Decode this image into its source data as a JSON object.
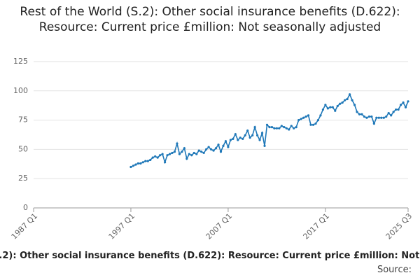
{
  "chart_data": {
    "type": "line",
    "title": "Rest of the World (S.2): Other social insurance benefits (D.622): Resource: Current price £million: Not seasonally adjusted",
    "source_label": "Source:",
    "x": [
      "1997 Q1",
      "1997 Q2",
      "1997 Q3",
      "1997 Q4",
      "1998 Q1",
      "1998 Q2",
      "1998 Q3",
      "1998 Q4",
      "1999 Q1",
      "1999 Q2",
      "1999 Q3",
      "1999 Q4",
      "2000 Q1",
      "2000 Q2",
      "2000 Q3",
      "2000 Q4",
      "2001 Q1",
      "2001 Q2",
      "2001 Q3",
      "2001 Q4",
      "2002 Q1",
      "2002 Q2",
      "2002 Q3",
      "2002 Q4",
      "2003 Q1",
      "2003 Q2",
      "2003 Q3",
      "2003 Q4",
      "2004 Q1",
      "2004 Q2",
      "2004 Q3",
      "2004 Q4",
      "2005 Q1",
      "2005 Q2",
      "2005 Q3",
      "2005 Q4",
      "2006 Q1",
      "2006 Q2",
      "2006 Q3",
      "2006 Q4",
      "2007 Q1",
      "2007 Q2",
      "2007 Q3",
      "2007 Q4",
      "2008 Q1",
      "2008 Q2",
      "2008 Q3",
      "2008 Q4",
      "2009 Q1",
      "2009 Q2",
      "2009 Q3",
      "2009 Q4",
      "2010 Q1",
      "2010 Q2",
      "2010 Q3",
      "2010 Q4",
      "2011 Q1",
      "2011 Q2",
      "2011 Q3",
      "2011 Q4",
      "2012 Q1",
      "2012 Q2",
      "2012 Q3",
      "2012 Q4",
      "2013 Q1",
      "2013 Q2",
      "2013 Q3",
      "2013 Q4",
      "2014 Q1",
      "2014 Q2",
      "2014 Q3",
      "2014 Q4",
      "2015 Q1",
      "2015 Q2",
      "2015 Q3",
      "2015 Q4",
      "2016 Q1",
      "2016 Q2",
      "2016 Q3",
      "2016 Q4",
      "2017 Q1",
      "2017 Q2",
      "2017 Q3",
      "2017 Q4",
      "2018 Q1",
      "2018 Q2",
      "2018 Q3",
      "2018 Q4",
      "2019 Q1",
      "2019 Q2",
      "2019 Q3",
      "2019 Q4",
      "2020 Q1",
      "2020 Q2",
      "2020 Q3",
      "2020 Q4",
      "2021 Q1",
      "2021 Q2",
      "2021 Q3",
      "2021 Q4",
      "2022 Q1",
      "2022 Q2",
      "2022 Q3",
      "2022 Q4",
      "2023 Q1",
      "2023 Q2",
      "2023 Q3",
      "2023 Q4",
      "2024 Q1",
      "2024 Q2",
      "2024 Q3",
      "2024 Q4",
      "2025 Q1",
      "2025 Q2",
      "2025 Q3"
    ],
    "series": [
      {
        "name": "D.622",
        "color": "#1f78b8",
        "values": [
          35,
          36,
          37,
          38,
          38,
          39,
          40,
          40,
          41,
          43,
          44,
          43,
          45,
          46,
          39,
          45,
          46,
          47,
          48,
          55,
          46,
          48,
          51,
          42,
          46,
          45,
          47,
          46,
          49,
          48,
          47,
          50,
          52,
          50,
          49,
          51,
          54,
          48,
          53,
          57,
          52,
          58,
          59,
          63,
          58,
          60,
          59,
          62,
          66,
          60,
          62,
          69,
          62,
          58,
          64,
          53,
          71,
          69,
          69,
          68,
          68,
          68,
          70,
          69,
          68,
          67,
          70,
          68,
          69,
          75,
          76,
          77,
          78,
          79,
          71,
          71,
          72,
          75,
          79,
          84,
          88,
          85,
          86,
          86,
          83,
          87,
          89,
          90,
          92,
          93,
          97,
          92,
          88,
          82,
          80,
          80,
          78,
          77,
          78,
          78,
          72,
          77,
          77,
          77,
          77,
          78,
          81,
          79,
          82,
          84,
          84,
          88,
          90,
          86,
          91
        ]
      }
    ],
    "xlim": [
      "1987 Q1",
      "2025 Q3"
    ],
    "xticks": [
      "1987 Q1",
      "1997 Q1",
      "2007 Q1",
      "2017 Q1",
      "2025 Q3"
    ],
    "ylim": [
      0,
      125
    ],
    "yticks": [
      0,
      25,
      50,
      75,
      100,
      125
    ],
    "grid": true
  }
}
